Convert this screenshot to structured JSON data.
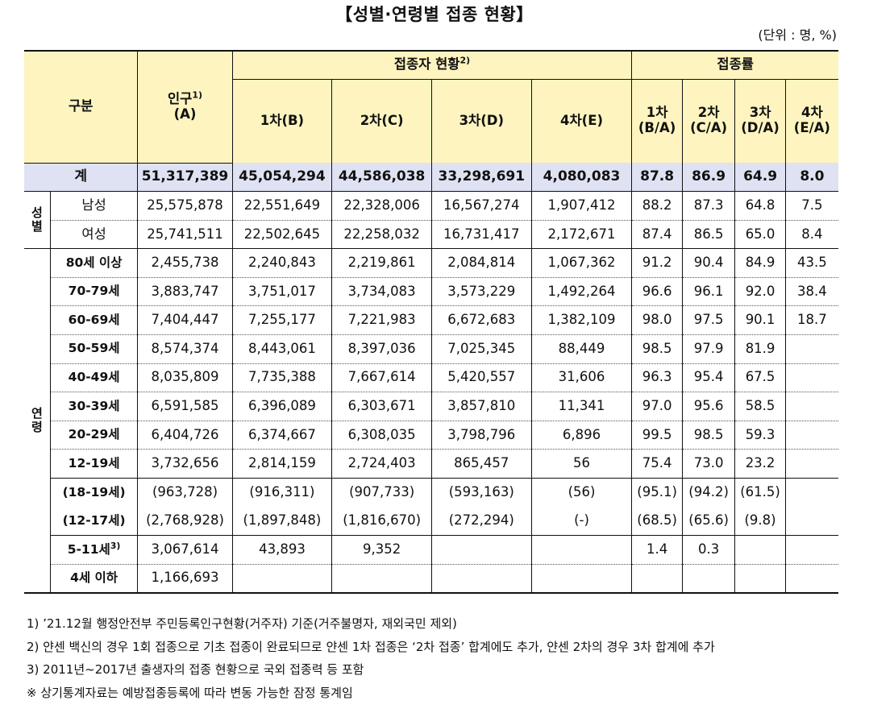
{
  "title": "【성별·연령별 접종 현황】",
  "unit": "(단위 : 명, %)",
  "header": {
    "category": "구분",
    "population": "인구",
    "population_sup": "1)",
    "population_sub": "(A)",
    "vaccinated": "접종자 현황",
    "vaccinated_sup": "2)",
    "rate": "접종률",
    "d1": "1차(B)",
    "d2": "2차(C)",
    "d3": "3차(D)",
    "d4": "4차(E)",
    "r1a": "1차",
    "r1b": "(B/A)",
    "r2a": "2차",
    "r2b": "(C/A)",
    "r3a": "3차",
    "r3b": "(D/A)",
    "r4a": "4차",
    "r4b": "(E/A)"
  },
  "total": {
    "label": "계",
    "pop": "51,317,389",
    "d1": "45,054,294",
    "d2": "44,586,038",
    "d3": "33,298,691",
    "d4": "4,080,083",
    "r1": "87.8",
    "r2": "86.9",
    "r3": "64.9",
    "r4": "8.0"
  },
  "groups": {
    "sex": "성별",
    "age": "연령"
  },
  "sex_rows": [
    {
      "label": "남성",
      "pop": "25,575,878",
      "d1": "22,551,649",
      "d2": "22,328,006",
      "d3": "16,567,274",
      "d4": "1,907,412",
      "r1": "88.2",
      "r2": "87.3",
      "r3": "64.8",
      "r4": "7.5"
    },
    {
      "label": "여성",
      "pop": "25,741,511",
      "d1": "22,502,645",
      "d2": "22,258,032",
      "d3": "16,731,417",
      "d4": "2,172,671",
      "r1": "87.4",
      "r2": "86.5",
      "r3": "65.0",
      "r4": "8.4"
    }
  ],
  "age_rows": [
    {
      "label": "80세 이상",
      "pop": "2,455,738",
      "d1": "2,240,843",
      "d2": "2,219,861",
      "d3": "2,084,814",
      "d4": "1,067,362",
      "r1": "91.2",
      "r2": "90.4",
      "r3": "84.9",
      "r4": "43.5"
    },
    {
      "label": "70-79세",
      "pop": "3,883,747",
      "d1": "3,751,017",
      "d2": "3,734,083",
      "d3": "3,573,229",
      "d4": "1,492,264",
      "r1": "96.6",
      "r2": "96.1",
      "r3": "92.0",
      "r4": "38.4"
    },
    {
      "label": "60-69세",
      "pop": "7,404,447",
      "d1": "7,255,177",
      "d2": "7,221,983",
      "d3": "6,672,683",
      "d4": "1,382,109",
      "r1": "98.0",
      "r2": "97.5",
      "r3": "90.1",
      "r4": "18.7"
    },
    {
      "label": "50-59세",
      "pop": "8,574,374",
      "d1": "8,443,061",
      "d2": "8,397,036",
      "d3": "7,025,345",
      "d4": "88,449",
      "r1": "98.5",
      "r2": "97.9",
      "r3": "81.9",
      "r4": ""
    },
    {
      "label": "40-49세",
      "pop": "8,035,809",
      "d1": "7,735,388",
      "d2": "7,667,614",
      "d3": "5,420,557",
      "d4": "31,606",
      "r1": "96.3",
      "r2": "95.4",
      "r3": "67.5",
      "r4": ""
    },
    {
      "label": "30-39세",
      "pop": "6,591,585",
      "d1": "6,396,089",
      "d2": "6,303,671",
      "d3": "3,857,810",
      "d4": "11,341",
      "r1": "97.0",
      "r2": "95.6",
      "r3": "58.5",
      "r4": ""
    },
    {
      "label": "20-29세",
      "pop": "6,404,726",
      "d1": "6,374,667",
      "d2": "6,308,035",
      "d3": "3,798,796",
      "d4": "6,896",
      "r1": "99.5",
      "r2": "98.5",
      "r3": "59.3",
      "r4": ""
    },
    {
      "label": "12-19세",
      "pop": "3,732,656",
      "d1": "2,814,159",
      "d2": "2,724,403",
      "d3": "865,457",
      "d4": "56",
      "r1": "75.4",
      "r2": "73.0",
      "r3": "23.2",
      "r4": ""
    },
    {
      "label": "(18-19세)",
      "pop": "(963,728)",
      "d1": "(916,311)",
      "d2": "(907,733)",
      "d3": "(593,163)",
      "d4": "(56)",
      "r1": "(95.1)",
      "r2": "(94.2)",
      "r3": "(61.5)",
      "r4": ""
    },
    {
      "label": "(12-17세)",
      "pop": "(2,768,928)",
      "d1": "(1,897,848)",
      "d2": "(1,816,670)",
      "d3": "(272,294)",
      "d4": "(-)",
      "r1": "(68.5)",
      "r2": "(65.6)",
      "r3": "(9.8)",
      "r4": ""
    },
    {
      "label": "5-11세",
      "label_sup": "3)",
      "pop": "3,067,614",
      "d1": "43,893",
      "d2": "9,352",
      "d3": "",
      "d4": "",
      "r1": "1.4",
      "r2": "0.3",
      "r3": "",
      "r4": ""
    },
    {
      "label": "4세 이하",
      "pop": "1,166,693",
      "d1": "",
      "d2": "",
      "d3": "",
      "d4": "",
      "r1": "",
      "r2": "",
      "r3": "",
      "r4": ""
    }
  ],
  "notes": [
    "1) ’21.12월 행정안전부 주민등록인구현황(거주자) 기준(거주불명자, 재외국민 제외)",
    "2) 얀센 백신의 경우 1회 접종으로 기초 접종이 완료되므로 얀센 1차 접종은 ‘2차 접종’ 합계에도 추가, 얀센 2차의 경우 3차 합계에 추가",
    "3) 2011년~2017년 출생자의 접종 현황으로 국외 접종력 등 포함",
    "※ 상기통계자료는 예방접종등록에 따라 변동 가능한 잠정 통계임"
  ]
}
